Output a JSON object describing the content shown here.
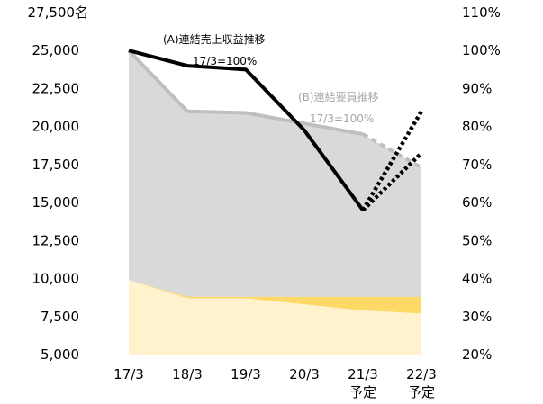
{
  "chart_data": {
    "type": "area",
    "categories": [
      "17/3",
      "18/3",
      "19/3",
      "20/3",
      "21/3",
      "22/3"
    ],
    "category_sublabels": [
      "",
      "",
      "",
      "",
      "予定",
      "予定"
    ],
    "y_left": {
      "ylim": [
        5000,
        27500
      ],
      "ticks": [
        5000,
        7500,
        10000,
        12500,
        15000,
        17500,
        20000,
        22500,
        25000,
        27500
      ],
      "tick_labels": [
        "5,000",
        "7,500",
        "10,000",
        "12,500",
        "15,000",
        "17,500",
        "20,000",
        "22,500",
        "25,000",
        "27,500名"
      ]
    },
    "y_right": {
      "ylim": [
        20,
        110
      ],
      "ticks": [
        20,
        30,
        40,
        50,
        60,
        70,
        80,
        90,
        100,
        110
      ],
      "tick_labels": [
        "20%",
        "30%",
        "40%",
        "50%",
        "60%",
        "70%",
        "80%",
        "90%",
        "100%",
        "110%"
      ]
    },
    "series": [
      {
        "name": "",
        "kind": "area",
        "axis": "left",
        "values": [
          9900,
          8700,
          8700,
          8300,
          7900,
          7700
        ]
      },
      {
        "name": "",
        "kind": "area",
        "axis": "left",
        "values": [
          9900,
          8800,
          8800,
          8800,
          8800,
          8800
        ]
      },
      {
        "name": "",
        "kind": "area",
        "axis": "left",
        "values": [
          25000,
          21000,
          20900,
          20200,
          19500,
          17300
        ]
      },
      {
        "name": "(B)連結要員推移",
        "kind": "line",
        "axis": "left",
        "values": [
          25000,
          21000,
          20900,
          20200,
          19500,
          null
        ]
      },
      {
        "name": "",
        "kind": "line",
        "axis": "left",
        "dashed": true,
        "values": [
          null,
          null,
          null,
          null,
          19500,
          17300
        ]
      },
      {
        "name": "(A)連結売上収益推移",
        "kind": "line",
        "axis": "right",
        "values": [
          100,
          96,
          95,
          79,
          58,
          null
        ]
      },
      {
        "name": "",
        "kind": "line",
        "axis": "right",
        "dotted": true,
        "values": [
          null,
          null,
          null,
          null,
          58,
          73
        ]
      },
      {
        "name": "",
        "kind": "line",
        "axis": "right",
        "dotted": true,
        "values": [
          null,
          null,
          null,
          null,
          58,
          84
        ]
      }
    ],
    "annotations": {
      "a_title": "(A)連結売上収益推移",
      "a_base": "17/3=100%",
      "b_title": "(B)連結要員推移",
      "b_base": "17/3=100%"
    },
    "grid": false,
    "colors": {
      "beige": "#fff2cc",
      "gold": "#ffd966",
      "grey_area": "#d9d9d9",
      "grey_line": "#bfbfbf",
      "dark_line": "#000000",
      "annotation_grey": "#a6a6a6"
    }
  }
}
